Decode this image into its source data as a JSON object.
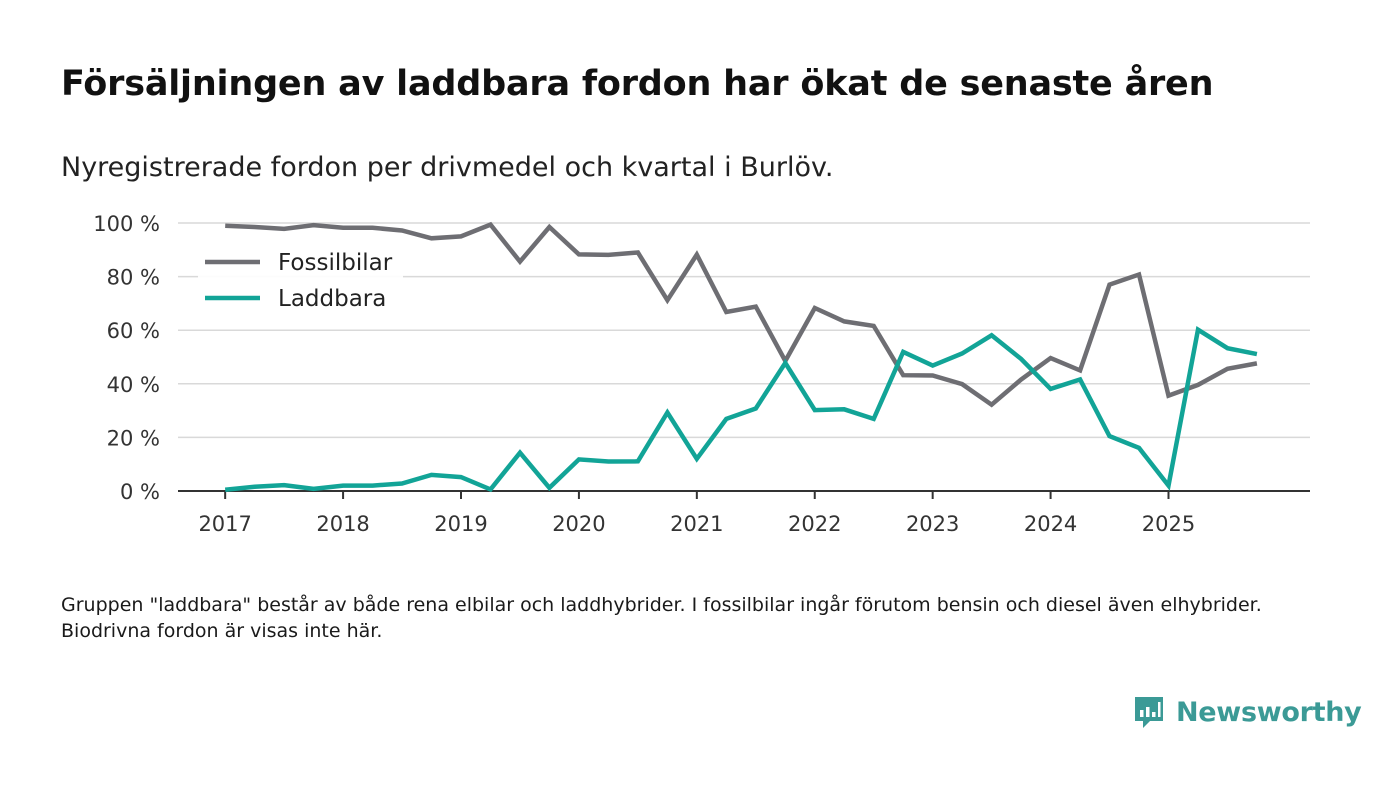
{
  "title": "Försäljningen av laddbara fordon har ökat de senaste åren",
  "subtitle": "Nyregistrerade fordon per drivmedel och kvartal i Burlöv.",
  "note": "Gruppen \"laddbara\" består av både rena elbilar och laddhybrider. I fossilbilar ingår förutom bensin och diesel även elhybrider. Biodrivna fordon är visas inte här.",
  "brand": "Newsworthy",
  "colors": {
    "fossil": "#6e6e73",
    "laddbara": "#12a497",
    "brand": "#3b9a96",
    "grid": "#d9d9d9"
  },
  "chart_data": {
    "type": "line",
    "title": "Försäljningen av laddbara fordon har ökat de senaste åren",
    "xlabel": "",
    "ylabel": "",
    "x_start": 2017,
    "x_step": 0.25,
    "xlim": [
      2016.6,
      2026.2
    ],
    "ylim": [
      0,
      100
    ],
    "y_ticks": [
      0,
      20,
      40,
      60,
      80,
      100
    ],
    "y_tick_labels": [
      "0 %",
      "20 %",
      "40 %",
      "60 %",
      "80 %",
      "100 %"
    ],
    "x_ticks": [
      2017,
      2018,
      2019,
      2020,
      2021,
      2022,
      2023,
      2024,
      2025
    ],
    "x_tick_labels": [
      "2017",
      "2018",
      "2019",
      "2020",
      "2021",
      "2022",
      "2023",
      "2024",
      "2025"
    ],
    "legend_position": "top-left",
    "series": [
      {
        "name": "Fossilbilar",
        "color": "#6e6e73",
        "values": [
          99,
          98.5,
          97.8,
          99.2,
          98.2,
          98.2,
          97.2,
          94.3,
          95,
          99.4,
          85.6,
          98.5,
          88.3,
          88.1,
          89,
          71.2,
          88.2,
          66.8,
          68.8,
          48.5,
          68.3,
          63.3,
          61.6,
          43.2,
          43.1,
          39.9,
          32.2,
          41.6,
          49.6,
          45,
          77,
          80.8,
          35.6,
          39.6,
          45.6,
          47.6
        ]
      },
      {
        "name": "Laddbara",
        "color": "#12a497",
        "values": [
          0.5,
          1.6,
          2.2,
          0.8,
          2,
          2,
          2.8,
          6,
          5.2,
          0.6,
          14.3,
          1.2,
          11.8,
          11,
          11.1,
          29.3,
          12,
          26.9,
          30.8,
          47.8,
          30.2,
          30.5,
          26.9,
          51.9,
          46.8,
          51.3,
          58.1,
          49.3,
          38.1,
          41.6,
          20.5,
          16.1,
          2,
          60.2,
          53.3,
          51.1
        ]
      }
    ]
  }
}
